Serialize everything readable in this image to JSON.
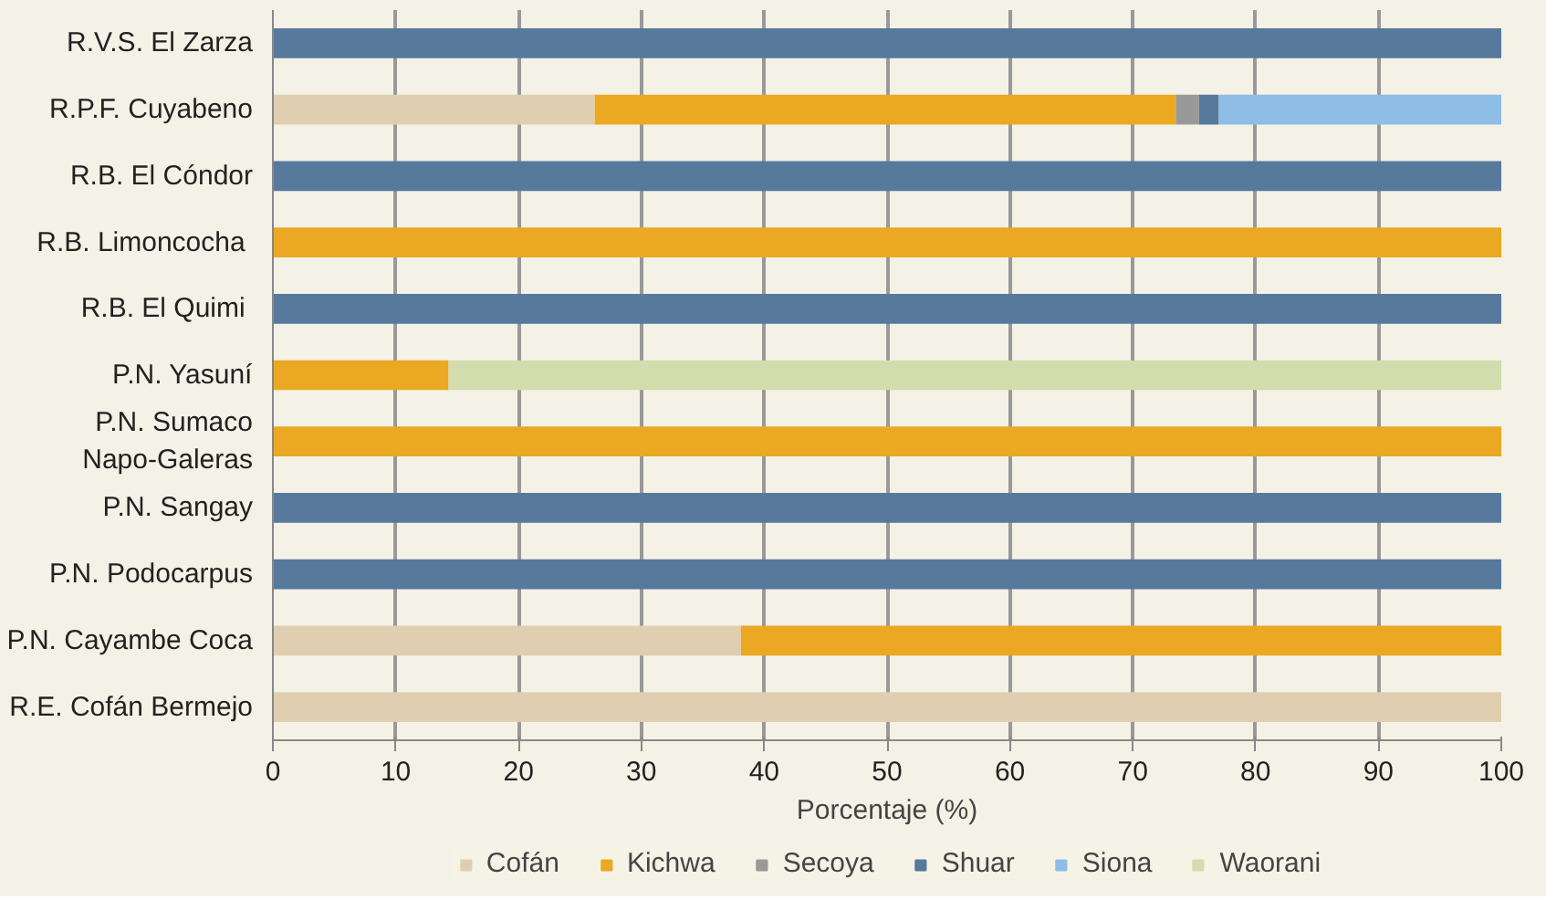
{
  "chart_data": {
    "type": "bar",
    "orientation": "horizontal",
    "stacked": true,
    "xlabel": "Porcentaje (%)",
    "categories": [
      "R.V.S. El Zarza",
      "R.P.F. Cuyabeno",
      "R.B. El Cóndor",
      "R.B.  Limoncocha",
      "R.B.  El Quimi",
      "P.N. Yasuní",
      "P.N. Sumaco\nNapo-Galeras",
      "P.N. Sangay",
      "P.N. Podocarpus",
      "P.N. Cayambe Coca",
      "R.E. Cofán Bermejo"
    ],
    "series": [
      {
        "name": "Cofán",
        "color": "#dfcfb0",
        "values": [
          null,
          26.2,
          null,
          null,
          null,
          null,
          null,
          null,
          null,
          38.1,
          100
        ]
      },
      {
        "name": "Kichwa",
        "color": "#eaa823",
        "values": [
          null,
          47.3,
          null,
          100,
          null,
          14.3,
          100,
          null,
          null,
          61.9,
          null
        ]
      },
      {
        "name": "Secoya",
        "color": "#999999",
        "values": [
          null,
          1.9,
          null,
          null,
          null,
          null,
          null,
          null,
          null,
          null,
          null
        ]
      },
      {
        "name": "Shuar",
        "color": "#56799c",
        "values": [
          100,
          1.6,
          100,
          null,
          100,
          null,
          null,
          100,
          100,
          null,
          null
        ]
      },
      {
        "name": "Siona",
        "color": "#8ebde6",
        "values": [
          null,
          23.0,
          null,
          null,
          null,
          null,
          null,
          null,
          null,
          null,
          null
        ]
      },
      {
        "name": "Waorani",
        "color": "#d2dcad",
        "values": [
          null,
          null,
          null,
          null,
          null,
          85.7,
          null,
          null,
          null,
          null,
          null
        ]
      }
    ],
    "xlim": [
      0,
      100
    ],
    "xticks": [
      0,
      10,
      20,
      30,
      40,
      50,
      60,
      70,
      80,
      90,
      100
    ],
    "grid": "x",
    "legend": "bottom"
  }
}
